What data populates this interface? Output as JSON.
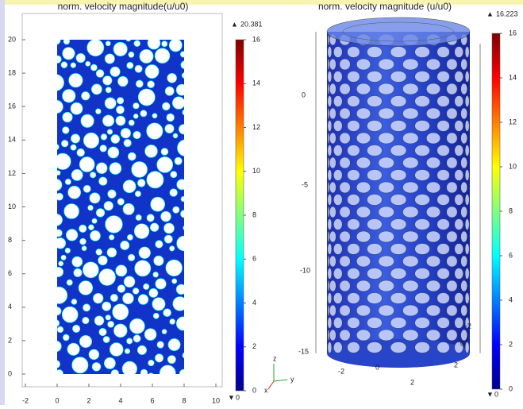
{
  "panels": [
    {
      "title": "norm. velocity magnitude(u/u0)",
      "xticks": [
        -2,
        0,
        2,
        4,
        6,
        8,
        10
      ],
      "yticks": [
        0,
        2,
        4,
        6,
        8,
        10,
        12,
        14,
        16,
        18,
        20
      ],
      "colorbar": {
        "max_label": 20.381,
        "min_label": 0,
        "ticks": [
          0,
          2,
          4,
          6,
          8,
          10,
          12,
          14,
          16
        ]
      }
    },
    {
      "title": "norm. velocity magnitude (u/u0)",
      "z_axis_labels": [
        0,
        -5,
        -10,
        -15
      ],
      "x_axis_labels": [
        -2,
        0,
        2
      ],
      "y_axis_labels": [
        -2,
        0,
        2
      ],
      "colorbar": {
        "max_label": 16.223,
        "min_label": 0,
        "ticks": [
          0,
          2,
          4,
          6,
          8,
          10,
          12,
          14,
          16
        ]
      }
    }
  ],
  "triad": [
    "z",
    "y",
    "x"
  ]
}
